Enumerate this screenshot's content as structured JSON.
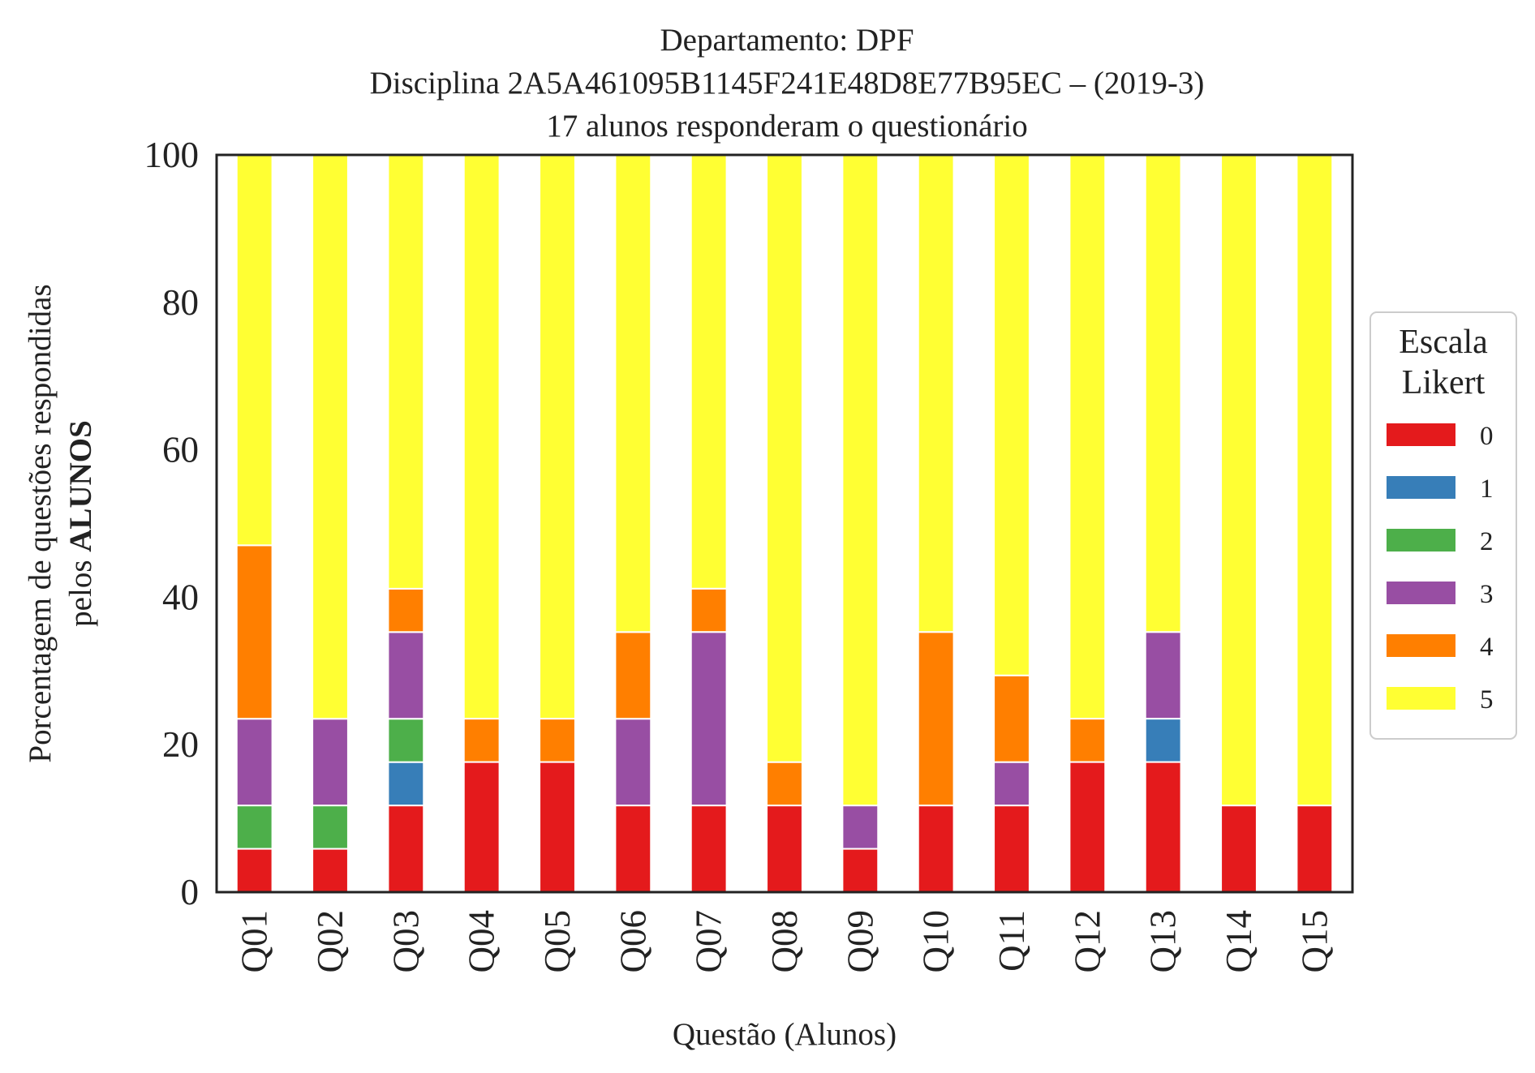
{
  "chart_data": {
    "type": "bar",
    "stacked": true,
    "title_lines": [
      "Departamento: DPF",
      "Disciplina 2A5A461095B1145F241E48D8E77B95EC – (2019-3)",
      "17 alunos responderam o questionário"
    ],
    "xlabel": "Questão (Alunos)",
    "ylabel_line1": "Porcentagem de questões respondidas",
    "ylabel_line2_prefix": "pelos ",
    "ylabel_line2_bold": "ALUNOS",
    "ylim": [
      0,
      100
    ],
    "yticks": [
      "0",
      "20",
      "40",
      "60",
      "80",
      "100"
    ],
    "grid": false,
    "legend_placement": "right",
    "legend_title_lines": [
      "Escala",
      "Likert"
    ],
    "categories": [
      "Q01",
      "Q02",
      "Q03",
      "Q04",
      "Q05",
      "Q06",
      "Q07",
      "Q08",
      "Q09",
      "Q10",
      "Q11",
      "Q12",
      "Q13",
      "Q14",
      "Q15"
    ],
    "series": [
      {
        "name": "0",
        "color": "#e41a1c",
        "values": [
          5.88,
          5.88,
          11.76,
          17.65,
          17.65,
          11.76,
          11.76,
          11.76,
          5.88,
          11.76,
          11.76,
          17.65,
          17.65,
          11.76,
          11.76
        ]
      },
      {
        "name": "1",
        "color": "#377eb8",
        "values": [
          0,
          0,
          5.88,
          0,
          0,
          0,
          0,
          0,
          0,
          0,
          0,
          0,
          5.88,
          0,
          0
        ]
      },
      {
        "name": "2",
        "color": "#4daf4a",
        "values": [
          5.88,
          5.88,
          5.88,
          0,
          0,
          0,
          0,
          0,
          0,
          0,
          0,
          0,
          0,
          0,
          0
        ]
      },
      {
        "name": "3",
        "color": "#984ea3",
        "values": [
          11.76,
          11.76,
          11.76,
          0,
          0,
          11.76,
          23.53,
          0,
          5.88,
          0,
          5.88,
          0,
          11.76,
          0,
          0
        ]
      },
      {
        "name": "4",
        "color": "#ff7f00",
        "values": [
          23.53,
          0,
          5.88,
          5.88,
          5.88,
          11.76,
          5.88,
          5.88,
          0,
          23.53,
          11.76,
          5.88,
          0,
          0,
          0
        ]
      },
      {
        "name": "5",
        "color": "#ffff33",
        "values": [
          52.94,
          76.47,
          58.82,
          76.47,
          76.47,
          64.71,
          58.82,
          82.35,
          88.24,
          64.71,
          70.59,
          76.47,
          64.71,
          88.24,
          88.24
        ]
      }
    ]
  }
}
